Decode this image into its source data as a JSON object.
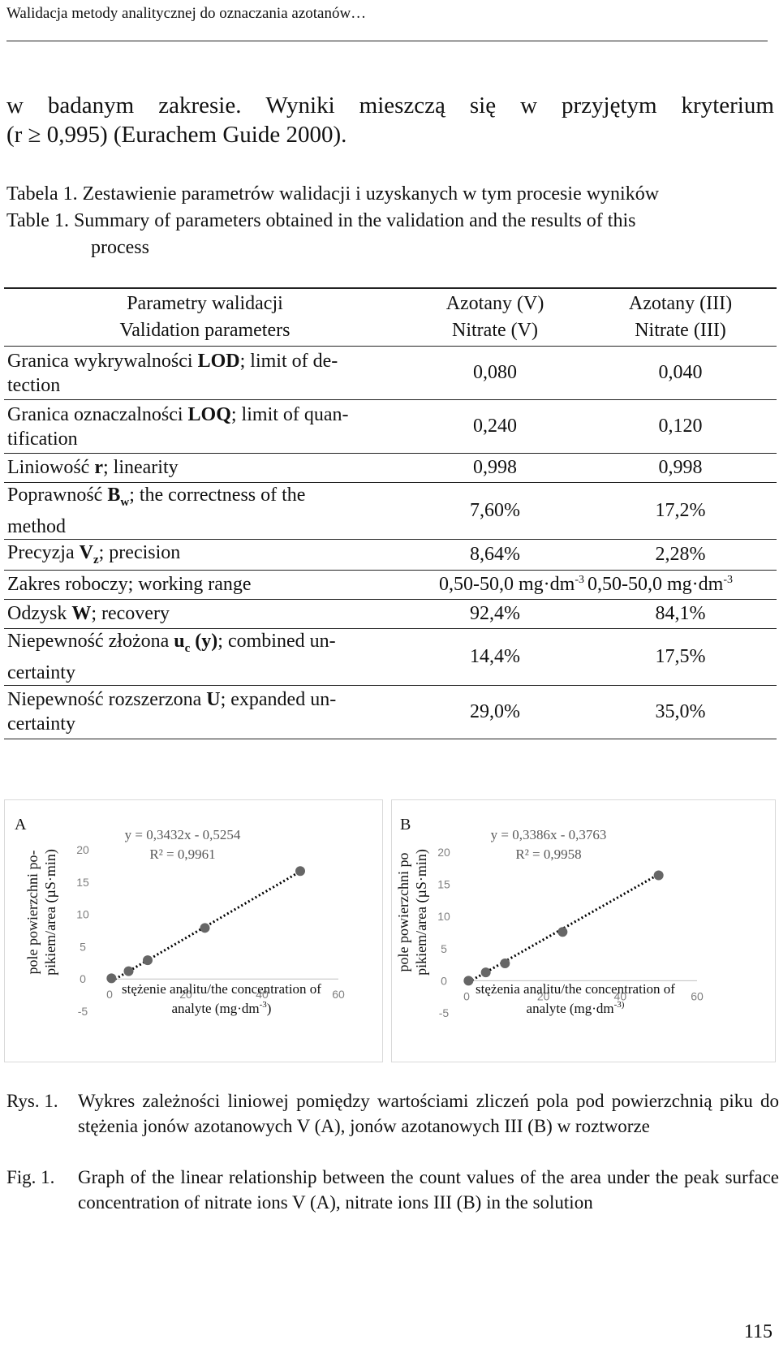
{
  "header": {
    "running_title": "Walidacja metody analitycznej do oznaczania azotanów…"
  },
  "paragraph": {
    "line1_words": [
      "w",
      "badanym",
      "zakresie.",
      "Wyniki",
      "mieszczą",
      "się",
      "w",
      "przyjętym",
      "kryterium"
    ],
    "line2": "(r ≥ 0,995) (Eurachem Guide 2000)."
  },
  "table_caption": {
    "pl": "Tabela 1. Zestawienie parametrów walidacji i uzyskanych w tym procesie wyników",
    "en_line1": "Table 1. Summary of parameters obtained in the validation and the results of this",
    "en_line2": "process"
  },
  "table": {
    "header": {
      "param_pl": "Parametry walidacji",
      "param_en": "Validation parameters",
      "col1_pl": "Azotany (V)",
      "col1_en": "Nitrate (V)",
      "col2_pl": "Azotany (III)",
      "col2_en": "Nitrate (III)"
    },
    "rows": [
      {
        "pre": "Granica wykrywalności ",
        "bold": "LOD",
        "sub": "",
        "post": "; limit of de-",
        "line2": "tection",
        "v1": "0,080",
        "v2": "0,040"
      },
      {
        "pre": "Granica oznaczalności ",
        "bold": "LOQ",
        "sub": "",
        "post": "; limit of quan-",
        "line2": "tification",
        "v1": "0,240",
        "v2": "0,120"
      },
      {
        "pre": "Liniowość ",
        "bold": "r",
        "sub": "",
        "post": "; linearity",
        "line2": "",
        "v1": "0,998",
        "v2": "0,998"
      },
      {
        "pre": "Poprawność ",
        "bold": "B",
        "sub": "w",
        "post": "; the correctness of the",
        "line2": "method",
        "v1": "7,60%",
        "v2": "17,2%"
      },
      {
        "pre": "Precyzja ",
        "bold": "V",
        "sub": "z",
        "post": "; precision",
        "line2": "",
        "v1": "8,64%",
        "v2": "2,28%"
      },
      {
        "pre": "Zakres roboczy; working range",
        "bold": "",
        "sub": "",
        "post": "",
        "line2": "",
        "v1": "0,50-50,0 mg·dm",
        "v1_sup": "-3",
        "v2": "0,50-50,0 mg·dm",
        "v2_sup": "-3"
      },
      {
        "pre": "Odzysk ",
        "bold": "W",
        "sub": "",
        "post": "; recovery",
        "line2": "",
        "v1": "92,4%",
        "v2": "84,1%"
      },
      {
        "pre": "Niepewność złożona ",
        "bold": "u",
        "sub": "c",
        "post_bold": " (y)",
        "post": "; combined un-",
        "line2": "certainty",
        "v1": "14,4%",
        "v2": "17,5%"
      },
      {
        "pre": "Niepewność rozszerzona ",
        "bold": "U",
        "sub": "",
        "post": "; expanded un-",
        "line2": "certainty",
        "v1": "29,0%",
        "v2": "35,0%"
      }
    ]
  },
  "chart_data": [
    {
      "type": "scatter",
      "panel_label": "A",
      "ylabel_line1": "pole powierzchni po-",
      "ylabel_line2": "pikiem/area (µS·min)",
      "xlabel_line1": "stężenie analitu/the concentration of",
      "xlabel_line2": "analyte (mg·dm",
      "xlabel_sup": "-3",
      "xlabel_end": ")",
      "equation": "y = 0,3432x - 0,5254",
      "r2": "R² = 0,9961",
      "xlim": [
        0,
        60
      ],
      "ylim": [
        -5,
        20
      ],
      "xticks": [
        "0",
        "20",
        "40",
        "60"
      ],
      "yticks": [
        "20",
        "15",
        "10",
        "5",
        "0",
        "-5"
      ],
      "trendline": {
        "slope": 0.3432,
        "intercept": -0.5254
      },
      "points": [
        [
          0.5,
          0.1
        ],
        [
          5,
          1.2
        ],
        [
          10,
          2.9
        ],
        [
          25,
          7.9
        ],
        [
          50,
          16.7
        ]
      ],
      "colors": {
        "point": "#666666",
        "trend": "#000000"
      }
    },
    {
      "type": "scatter",
      "panel_label": "B",
      "ylabel_line1": "pole powierzchni po",
      "ylabel_line2": "pikiem/area (µS·min)",
      "xlabel_line1": "stężenia analitu/the concentration of",
      "xlabel_line2": "analyte (mg·dm",
      "xlabel_sup": "-3)",
      "xlabel_end": "",
      "equation": "y = 0,3386x - 0,3763",
      "r2": "R² = 0,9958",
      "xlim": [
        0,
        60
      ],
      "ylim": [
        -5,
        20
      ],
      "xticks": [
        "0",
        "20",
        "40",
        "60"
      ],
      "yticks": [
        "20",
        "15",
        "10",
        "5",
        "0",
        "-5"
      ],
      "trendline": {
        "slope": 0.3386,
        "intercept": -0.3763
      },
      "points": [
        [
          0.5,
          0.0
        ],
        [
          5,
          1.3
        ],
        [
          10,
          2.7
        ],
        [
          25,
          7.6
        ],
        [
          50,
          16.4
        ]
      ],
      "colors": {
        "point": "#666666",
        "trend": "#000000"
      }
    }
  ],
  "figure_caption": {
    "pl_label": "Rys. 1.",
    "pl_text": "Wykres zależności liniowej pomiędzy wartościami zliczeń pola pod powierzchnią piku do stężenia jonów azotanowych V (A), jonów azotanowych III (B) w roztworze",
    "en_label": "Fig. 1.",
    "en_text": "Graph of the linear relationship between the count values of the area under the peak surface concentration of nitrate ions V (A), nitrate ions III (B) in the solution"
  },
  "page_number": "115"
}
